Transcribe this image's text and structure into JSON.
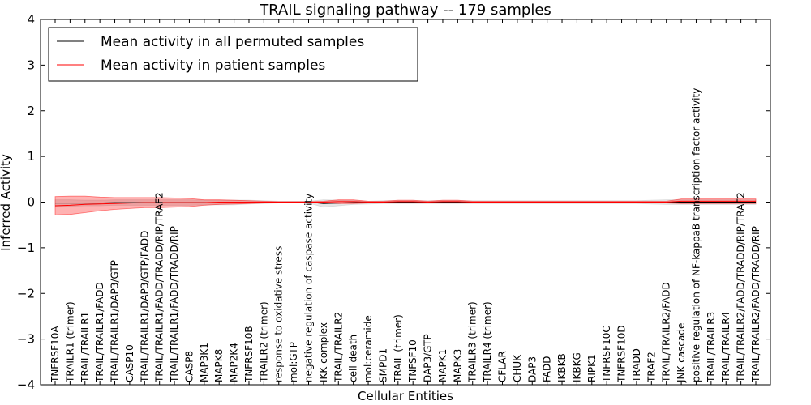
{
  "chart_data": {
    "type": "line",
    "title": "TRAIL signaling pathway -- 179 samples",
    "xlabel": "Cellular Entities",
    "ylabel": "Inferred Activity",
    "ylim": [
      -4,
      4
    ],
    "yticks": [
      "4",
      "3",
      "2",
      "1",
      "0",
      "−1",
      "−2",
      "−3",
      "−4"
    ],
    "ytick_values": [
      4,
      3,
      2,
      1,
      0,
      -1,
      -2,
      -3,
      -4
    ],
    "grid": false,
    "legend_position": "top-left",
    "categories": [
      "TNFRSF10A",
      "TRAILR1 (trimer)",
      "TRAIL/TRAILR1",
      "TRAIL/TRAILR1/FADD",
      "TRAIL/TRAILR1/DAP3/GTP",
      "CASP10",
      "TRAIL/TRAILR1/DAP3/GTP/FADD",
      "TRAIL/TRAILR1/FADD/TRADD/RIP/TRAF2",
      "TRAIL/TRAILR1/FADD/TRADD/RIP",
      "CASP8",
      "MAP3K1",
      "MAPK8",
      "MAP2K4",
      "TNFRSF10B",
      "TRAILR2 (trimer)",
      "response to oxidative stress",
      "mol:GTP",
      "negative regulation of caspase activity",
      "IKK complex",
      "TRAIL/TRAILR2",
      "cell death",
      "mol:ceramide",
      "SMPD1",
      "TRAIL (trimer)",
      "TNFSF10",
      "DAP3/GTP",
      "MAPK1",
      "MAPK3",
      "TRAILR3 (trimer)",
      "TRAILR4 (trimer)",
      "CFLAR",
      "CHUK",
      "DAP3",
      "FADD",
      "IKBKB",
      "IKBKG",
      "RIPK1",
      "TNFRSF10C",
      "TNFRSF10D",
      "TRADD",
      "TRAF2",
      "TRAIL/TRAILR2/FADD",
      "JNK cascade",
      "positive regulation of NF-kappaB transcription factor activity",
      "TRAIL/TRAILR3",
      "TRAIL/TRAILR4",
      "TRAIL/TRAILR2/FADD/TRADD/RIP/TRAF2",
      "TRAIL/TRAILR2/FADD/TRADD/RIP"
    ],
    "series": [
      {
        "name": "Mean activity in all permuted samples",
        "color": "#000000",
        "band_color": "#c8c8c8",
        "values": [
          -0.02,
          -0.02,
          -0.02,
          -0.02,
          -0.01,
          -0.01,
          -0.01,
          -0.01,
          -0.01,
          -0.01,
          -0.01,
          -0.01,
          -0.01,
          0,
          0,
          0,
          0,
          0,
          -0.03,
          -0.02,
          -0.01,
          -0.01,
          0,
          0,
          0,
          0,
          0,
          0,
          0,
          0,
          0,
          0,
          0,
          0,
          0,
          0,
          0,
          0,
          0,
          0,
          0,
          0,
          0,
          0,
          0,
          0,
          0,
          0
        ],
        "band": [
          0.07,
          0.07,
          0.06,
          0.06,
          0.06,
          0.06,
          0.06,
          0.06,
          0.06,
          0.06,
          0.05,
          0.05,
          0.05,
          0.04,
          0.03,
          0.02,
          0.02,
          0.02,
          0.08,
          0.06,
          0.04,
          0.03,
          0.03,
          0.03,
          0.03,
          0.03,
          0.03,
          0.03,
          0.03,
          0.03,
          0.03,
          0.03,
          0.03,
          0.03,
          0.03,
          0.03,
          0.03,
          0.03,
          0.03,
          0.03,
          0.04,
          0.05,
          0.05,
          0.05,
          0.05,
          0.05,
          0.05,
          0.05
        ]
      },
      {
        "name": "Mean activity in patient samples",
        "color": "#ff0000",
        "band_color": "#ff0000",
        "values": [
          -0.08,
          -0.07,
          -0.05,
          -0.04,
          -0.03,
          -0.02,
          -0.01,
          -0.01,
          -0.01,
          -0.01,
          -0.01,
          0,
          0,
          0,
          0,
          0,
          0,
          0,
          0,
          0.01,
          0.01,
          0,
          0,
          0.01,
          0.01,
          0,
          0.01,
          0.01,
          0,
          0,
          0,
          0,
          0,
          0,
          0,
          0,
          0,
          0,
          0,
          0,
          0,
          0,
          0.02,
          0.02,
          0.02,
          0.02,
          0.02,
          0.02
        ],
        "band": [
          0.2,
          0.2,
          0.18,
          0.15,
          0.13,
          0.12,
          0.11,
          0.11,
          0.1,
          0.09,
          0.06,
          0.05,
          0.04,
          0.03,
          0.02,
          0.01,
          0.01,
          0.01,
          0.02,
          0.04,
          0.04,
          0.02,
          0.02,
          0.03,
          0.03,
          0.02,
          0.03,
          0.03,
          0.02,
          0.02,
          0.02,
          0.02,
          0.02,
          0.02,
          0.02,
          0.02,
          0.02,
          0.02,
          0.02,
          0.02,
          0.02,
          0.02,
          0.05,
          0.05,
          0.05,
          0.05,
          0.05,
          0.05
        ]
      }
    ]
  }
}
